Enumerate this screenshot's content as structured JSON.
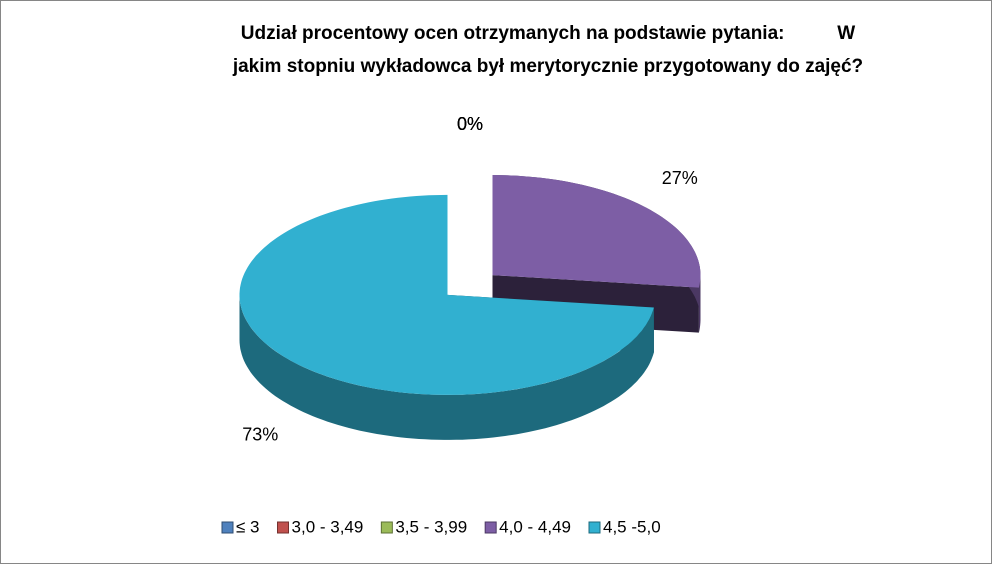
{
  "chart_data": {
    "type": "pie3d",
    "title": [
      "Udział procentowy ocen otrzymanych na podstawie pytania:          W",
      "jakim stopniu wykładowca był merytorycznie przygotowany do zajęć?"
    ],
    "categories": [
      "≤ 3",
      "3,0 - 3,49",
      "3,5 - 3,99",
      "4,0 - 4,49",
      "4,5 -5,0"
    ],
    "values": [
      0,
      0,
      0,
      27,
      73
    ],
    "value_labels": [
      "0%",
      "0%",
      "0%",
      "27%",
      "73%"
    ],
    "colors": [
      "#4f81bd",
      "#c0504d",
      "#9bbb59",
      "#7d5ea5",
      "#31b0d0"
    ],
    "legend": "bottom"
  }
}
